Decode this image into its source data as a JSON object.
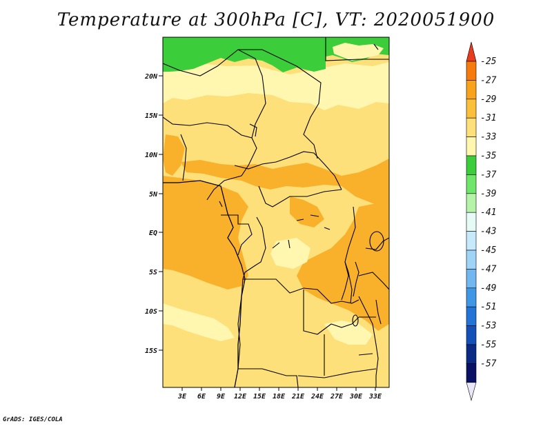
{
  "title": "Temperature at 300hPa [C], VT: 2020051900",
  "credit": "GrADS: IGES/COLA",
  "map": {
    "lat_labels": [
      "20N",
      "15N",
      "10N",
      "5N",
      "EQ",
      "5S",
      "10S",
      "15S"
    ],
    "lon_labels": [
      "3E",
      "6E",
      "9E",
      "12E",
      "15E",
      "18E",
      "21E",
      "24E",
      "27E",
      "30E",
      "33E"
    ],
    "region": "Central Africa",
    "field": "Temperature at 300hPa",
    "units": "C"
  },
  "colorbar": {
    "labels": [
      "-25",
      "-27",
      "-29",
      "-31",
      "-33",
      "-35",
      "-37",
      "-39",
      "-41",
      "-43",
      "-45",
      "-47",
      "-49",
      "-51",
      "-53",
      "-55",
      "-57"
    ],
    "colors": [
      "#e83c1e",
      "#f77a0c",
      "#f9a21c",
      "#fbbf3c",
      "#fde07a",
      "#fff7b0",
      "#3ccd3a",
      "#6fe56a",
      "#b5f3a9",
      "#e6fbf6",
      "#c6e9fb",
      "#9fd4f7",
      "#72b7f0",
      "#3f97e6",
      "#2474d7",
      "#1550b9",
      "#0a2a86",
      "#0a1063",
      "#e8e6f7"
    ]
  },
  "legend_levels": {
    "dominant_range_c": "-35 to -29",
    "north_band_c": "-37 to -35"
  }
}
